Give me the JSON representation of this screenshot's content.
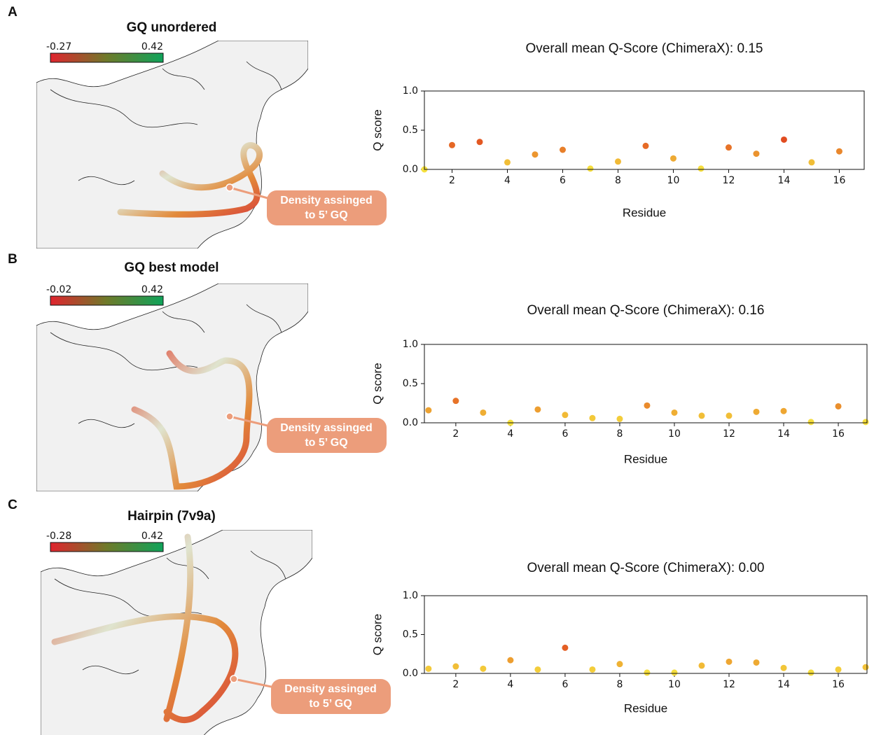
{
  "chart_data": [
    {
      "type": "scatter",
      "panel_label": "A",
      "image_title": "GQ unordered",
      "colorbar": {
        "min": -0.27,
        "max": 0.42,
        "colors": [
          "#e0242e",
          "#6e7a2a",
          "#0fa35a"
        ]
      },
      "annotation": [
        "Density assinged",
        "to 5’ GQ"
      ],
      "annotation_color": "#ec9d7b",
      "title": "Overall mean Q-Score (ChimeraX): 0.15",
      "xlabel": "Residue",
      "ylabel": "Q score",
      "x": [
        1,
        2,
        3,
        4,
        5,
        6,
        7,
        8,
        9,
        10,
        11,
        12,
        13,
        14,
        15,
        16
      ],
      "values": [
        0.0,
        0.31,
        0.35,
        0.09,
        0.19,
        0.25,
        0.01,
        0.1,
        0.3,
        0.14,
        0.01,
        0.28,
        0.2,
        0.38,
        0.09,
        0.23
      ],
      "colormap": [
        "#f6e13e",
        "#e0441e"
      ],
      "xlim": [
        1,
        16.9
      ],
      "ylim": [
        0,
        1.0
      ],
      "xticks": [
        2,
        4,
        6,
        8,
        10,
        12,
        14,
        16
      ],
      "yticks": [
        {
          "value": 0,
          "label": "0.0"
        },
        {
          "value": 0.5,
          "label": "0.5"
        },
        {
          "value": 1,
          "label": "1.0"
        }
      ]
    },
    {
      "type": "scatter",
      "panel_label": "B",
      "image_title": "GQ best model",
      "colorbar": {
        "min": -0.02,
        "max": 0.42,
        "colors": [
          "#e0242e",
          "#6e7a2a",
          "#0fa35a"
        ]
      },
      "annotation": [
        "Density assinged",
        "to 5’ GQ"
      ],
      "annotation_color": "#ec9d7b",
      "title": "Overall mean Q-Score (ChimeraX): 0.16",
      "xlabel": "Residue",
      "ylabel": "Q score",
      "x": [
        1,
        2,
        3,
        4,
        5,
        6,
        7,
        8,
        9,
        10,
        11,
        12,
        13,
        14,
        15,
        16,
        17
      ],
      "values": [
        0.16,
        0.28,
        0.13,
        0.0,
        0.17,
        0.1,
        0.06,
        0.05,
        0.22,
        0.13,
        0.09,
        0.09,
        0.14,
        0.15,
        0.01,
        0.21,
        0.01
      ],
      "colormap": [
        "#f6e13e",
        "#e0441e"
      ],
      "xlim": [
        0.85,
        17.05
      ],
      "ylim": [
        0,
        1.0
      ],
      "xticks": [
        2,
        4,
        6,
        8,
        10,
        12,
        14,
        16
      ],
      "yticks": [
        {
          "value": 0,
          "label": "0.0"
        },
        {
          "value": 0.5,
          "label": "0.5"
        },
        {
          "value": 1,
          "label": "1.0"
        }
      ]
    },
    {
      "type": "scatter",
      "panel_label": "C",
      "image_title": "Hairpin (7v9a)",
      "colorbar": {
        "min": -0.28,
        "max": 0.42,
        "colors": [
          "#e0242e",
          "#6e7a2a",
          "#0fa35a"
        ]
      },
      "annotation": [
        "Density assinged",
        "to 5’ GQ"
      ],
      "annotation_color": "#ec9d7b",
      "title": "Overall mean Q-Score (ChimeraX): 0.00",
      "xlabel": "Residue",
      "ylabel": "Q score",
      "x": [
        1,
        2,
        3,
        4,
        5,
        6,
        7,
        8,
        9,
        10,
        11,
        12,
        13,
        14,
        15,
        16,
        17
      ],
      "values": [
        0.06,
        0.09,
        0.06,
        0.17,
        0.05,
        0.33,
        0.05,
        0.12,
        0.01,
        0.01,
        0.1,
        0.15,
        0.14,
        0.07,
        0.01,
        0.05,
        0.08
      ],
      "colormap": [
        "#f6e13e",
        "#e0441e"
      ],
      "xlim": [
        0.85,
        17.05
      ],
      "ylim": [
        0,
        1.0
      ],
      "xticks": [
        2,
        4,
        6,
        8,
        10,
        12,
        14,
        16
      ],
      "yticks": [
        {
          "value": 0,
          "label": "0.0"
        },
        {
          "value": 0.5,
          "label": "0.5"
        },
        {
          "value": 1,
          "label": "1.0"
        }
      ]
    }
  ]
}
